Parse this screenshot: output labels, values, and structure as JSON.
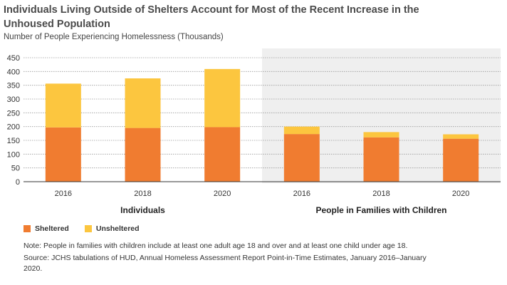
{
  "title": "Individuals Living Outside of Shelters Account for Most of the Recent Increase in the Unhoused Population",
  "colors": {
    "sheltered": "#f07c30",
    "unsheltered": "#fcc63f",
    "panel_shade": "#efefef",
    "grid": "#9a9a9a"
  },
  "legend": {
    "sheltered": "Sheltered",
    "unsheltered": "Unsheltered"
  },
  "note": "Note: People in families with children include at least one adult age 18 and over and at least one child under age 18.",
  "source": "Source: JCHS tabulations of HUD, Annual Homeless Assessment Report Point-in-Time Estimates, January 2016–January 2020.",
  "chart_data": {
    "type": "bar",
    "stacked": true,
    "ylabel": "Number of People Experiencing Homelessness (Thousands)",
    "ylim": [
      0,
      450
    ],
    "yticks": [
      0,
      50,
      100,
      150,
      200,
      250,
      300,
      350,
      400,
      450
    ],
    "grid": true,
    "groups": [
      {
        "name": "Individuals",
        "shaded": false,
        "categories": [
          "2016",
          "2018",
          "2020"
        ]
      },
      {
        "name": "People in Families with Children",
        "shaded": true,
        "categories": [
          "2016",
          "2018",
          "2020"
        ]
      }
    ],
    "series": [
      {
        "name": "Sheltered",
        "values": [
          197,
          195,
          198,
          173,
          161,
          156
        ]
      },
      {
        "name": "Unsheltered",
        "values": [
          159,
          180,
          211,
          27,
          19,
          16
        ]
      }
    ]
  }
}
